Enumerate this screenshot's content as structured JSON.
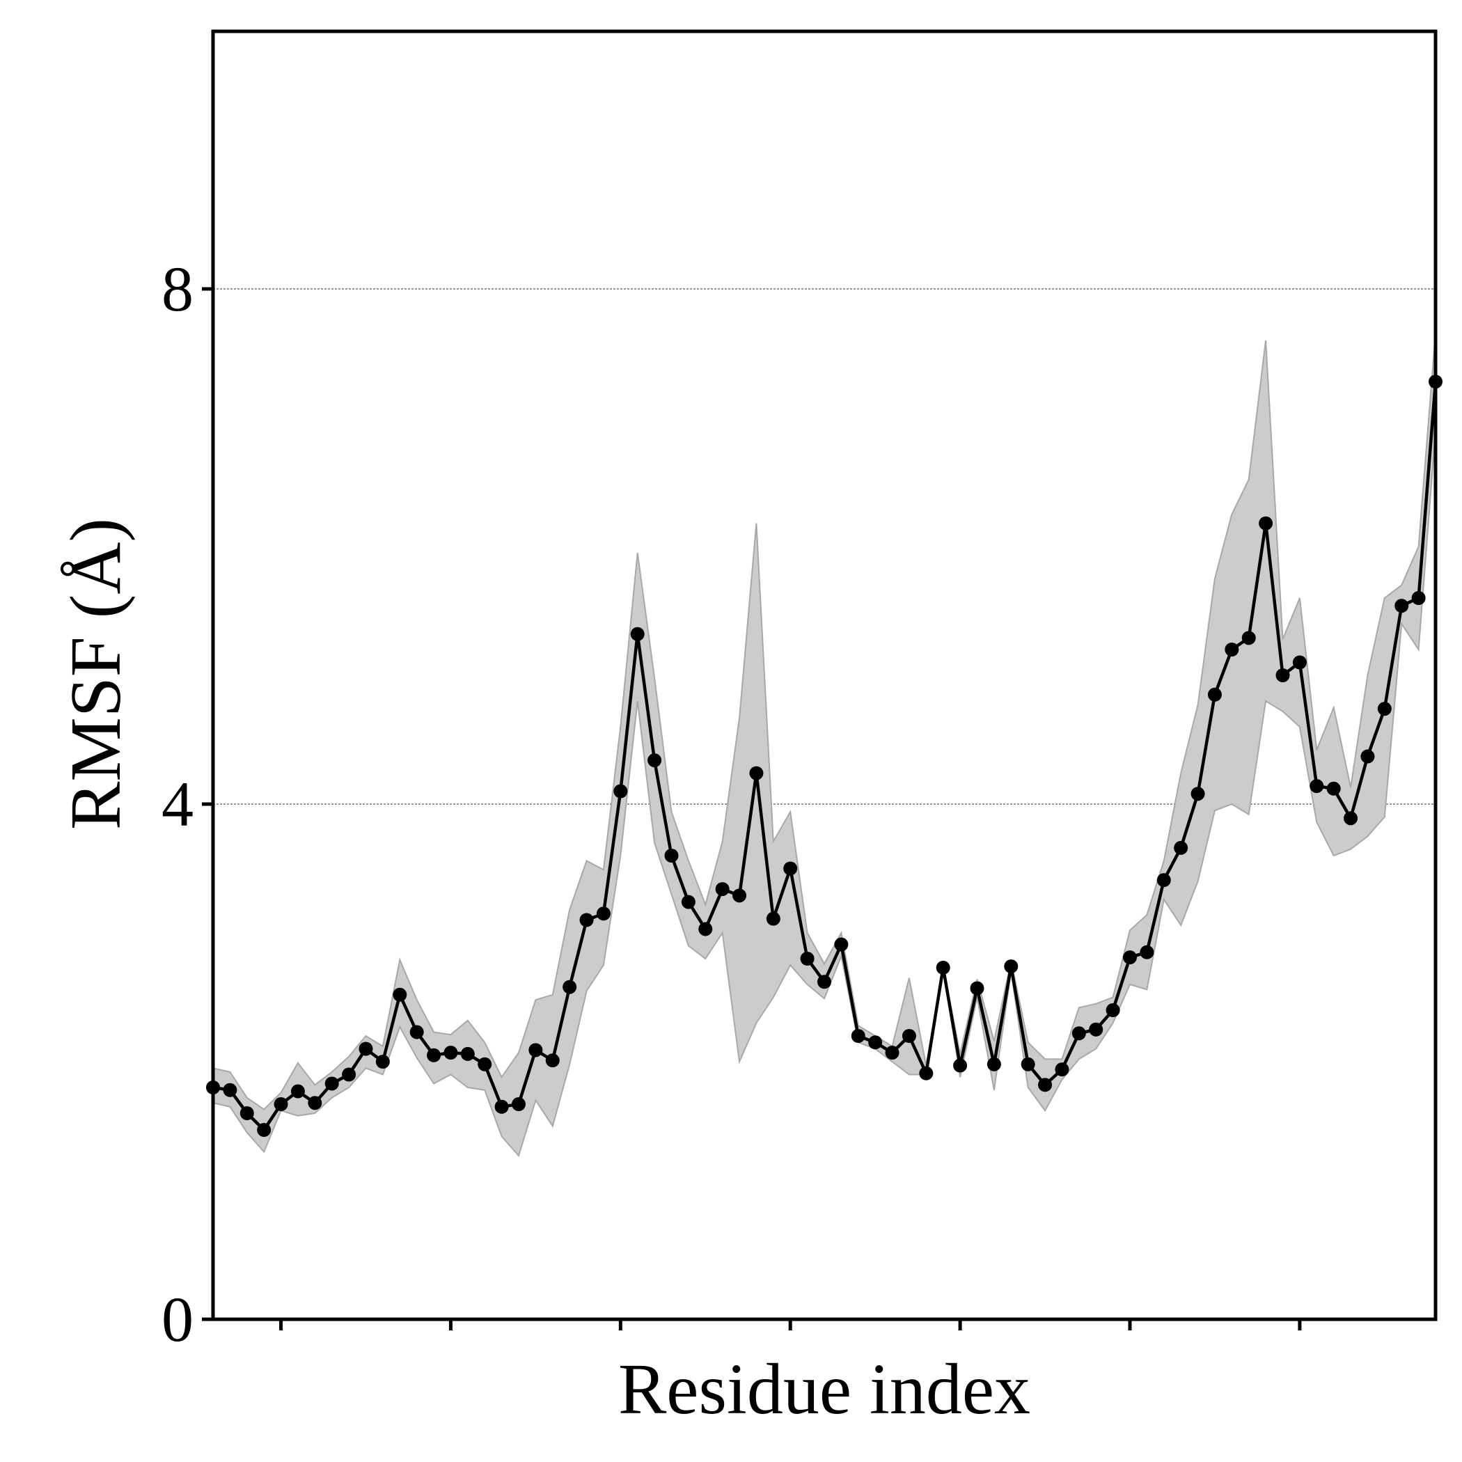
{
  "chart_data": {
    "type": "line",
    "title": "",
    "xlabel": "Residue index",
    "ylabel": "RMSF (Å)",
    "ylim": [
      0,
      10
    ],
    "xlim": [
      0,
      72
    ],
    "yticks": [
      0,
      4,
      8
    ],
    "ytick_labels": [
      "0",
      "4",
      "8"
    ],
    "xticks": [
      4,
      14,
      24,
      34,
      44,
      54,
      64
    ],
    "grid": "horizontal dashed at y ticks",
    "colors": {
      "line": "#000000",
      "band": "#cccccc",
      "band_edge": "#a8a8a8"
    },
    "x": [
      0,
      1,
      2,
      3,
      4,
      5,
      6,
      7,
      8,
      9,
      10,
      11,
      12,
      13,
      14,
      15,
      16,
      17,
      18,
      19,
      20,
      21,
      22,
      23,
      24,
      25,
      26,
      27,
      28,
      29,
      30,
      31,
      32,
      33,
      34,
      35,
      36,
      37,
      38,
      39,
      40,
      41,
      42,
      43,
      44,
      45,
      46,
      47,
      48,
      49,
      50,
      51,
      52,
      53,
      54,
      55,
      56,
      57,
      58,
      59,
      60,
      61,
      62,
      63,
      64,
      65,
      66,
      67,
      68,
      69,
      70,
      71,
      72
    ],
    "series": [
      {
        "values": [
          1.8,
          1.78,
          1.6,
          1.47,
          1.67,
          1.77,
          1.68,
          1.83,
          1.9,
          2.1,
          2.0,
          2.52,
          2.23,
          2.05,
          2.07,
          2.06,
          1.98,
          1.65,
          1.67,
          2.09,
          2.01,
          2.58,
          3.1,
          3.15,
          4.1,
          5.32,
          4.34,
          3.6,
          3.24,
          3.03,
          3.34,
          3.29,
          4.24,
          3.11,
          3.5,
          2.8,
          2.62,
          2.91,
          2.2,
          2.15,
          2.07,
          2.2,
          1.91,
          2.73,
          1.97,
          2.57,
          1.98,
          2.74,
          1.98,
          1.82,
          1.94,
          2.22,
          2.25,
          2.4,
          2.81,
          2.85,
          3.41,
          3.66,
          4.08,
          4.85,
          5.2,
          5.29,
          6.18,
          5.0,
          5.1,
          4.14,
          4.12,
          3.89,
          4.37,
          4.74,
          5.54,
          5.6,
          7.28
        ],
        "lower": [
          1.68,
          1.65,
          1.45,
          1.3,
          1.62,
          1.58,
          1.6,
          1.72,
          1.8,
          1.95,
          1.9,
          2.27,
          2.03,
          1.83,
          1.9,
          1.8,
          1.78,
          1.42,
          1.27,
          1.7,
          1.5,
          1.98,
          2.55,
          2.75,
          3.6,
          4.8,
          3.7,
          3.3,
          2.9,
          2.8,
          3.0,
          2.0,
          2.3,
          2.5,
          2.75,
          2.6,
          2.49,
          2.82,
          2.15,
          2.1,
          2.0,
          1.9,
          1.9,
          2.72,
          1.88,
          2.5,
          1.78,
          2.7,
          1.8,
          1.62,
          1.86,
          2.02,
          2.1,
          2.3,
          2.6,
          2.56,
          3.26,
          3.06,
          3.4,
          3.95,
          4.0,
          3.92,
          4.8,
          4.72,
          4.6,
          3.86,
          3.6,
          3.65,
          3.75,
          3.9,
          5.4,
          5.2,
          6.9
        ],
        "upper": [
          1.95,
          1.92,
          1.72,
          1.63,
          1.76,
          1.99,
          1.82,
          1.92,
          2.04,
          2.2,
          2.12,
          2.79,
          2.48,
          2.23,
          2.21,
          2.32,
          2.15,
          1.88,
          2.07,
          2.48,
          2.52,
          3.18,
          3.56,
          3.49,
          4.6,
          5.95,
          4.98,
          3.94,
          3.56,
          3.22,
          3.71,
          4.67,
          6.18,
          3.71,
          3.94,
          3.0,
          2.76,
          3.0,
          2.28,
          2.2,
          2.12,
          2.65,
          1.97,
          2.74,
          2.06,
          2.64,
          2.16,
          2.78,
          2.15,
          2.02,
          2.02,
          2.42,
          2.45,
          2.5,
          3.02,
          3.14,
          3.56,
          4.24,
          4.77,
          5.75,
          6.25,
          6.52,
          7.6,
          5.28,
          5.6,
          4.42,
          4.75,
          4.13,
          5.0,
          5.6,
          5.7,
          6.0,
          7.66
        ]
      }
    ]
  }
}
